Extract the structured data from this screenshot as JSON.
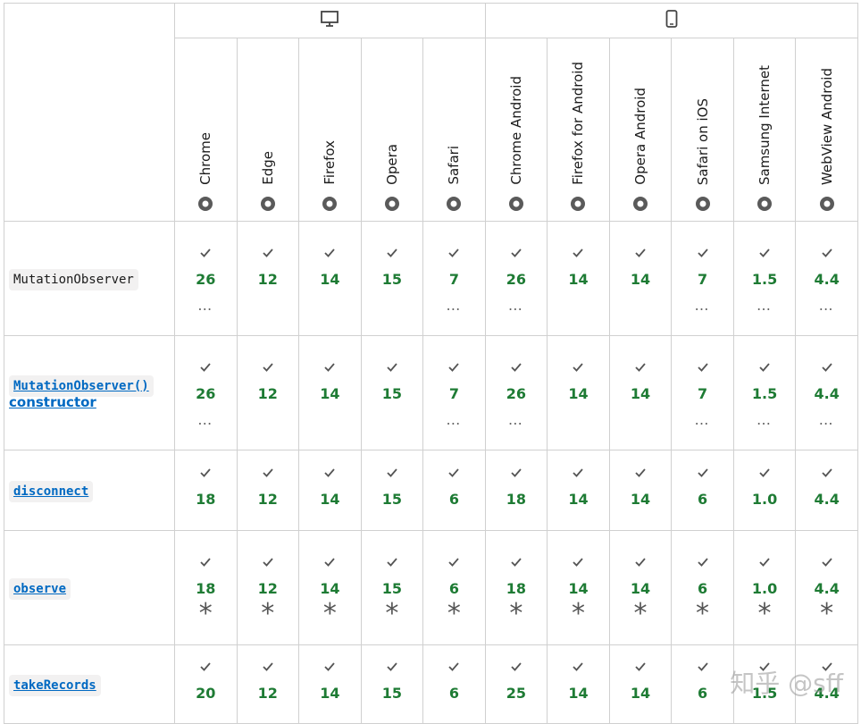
{
  "desktop_browsers": [
    "Chrome",
    "Edge",
    "Firefox",
    "Opera",
    "Safari"
  ],
  "mobile_browsers": [
    "Chrome Android",
    "Firefox for Android",
    "Opera Android",
    "Safari on iOS",
    "Samsung Internet",
    "WebView Android"
  ],
  "rows": [
    {
      "feature": {
        "code": "MutationObserver",
        "link": false
      },
      "support": [
        {
          "version": "26",
          "note": "…"
        },
        {
          "version": "12"
        },
        {
          "version": "14"
        },
        {
          "version": "15"
        },
        {
          "version": "7",
          "note": "…"
        },
        {
          "version": "26",
          "note": "…"
        },
        {
          "version": "14"
        },
        {
          "version": "14"
        },
        {
          "version": "7",
          "note": "…"
        },
        {
          "version": "1.5",
          "note": "…"
        },
        {
          "version": "4.4",
          "note": "…"
        }
      ]
    },
    {
      "feature": {
        "code": "MutationObserver()",
        "text": "constructor",
        "link": true
      },
      "support": [
        {
          "version": "26",
          "note": "…"
        },
        {
          "version": "12"
        },
        {
          "version": "14"
        },
        {
          "version": "15"
        },
        {
          "version": "7",
          "note": "…"
        },
        {
          "version": "26",
          "note": "…"
        },
        {
          "version": "14"
        },
        {
          "version": "14"
        },
        {
          "version": "7",
          "note": "…"
        },
        {
          "version": "1.5",
          "note": "…"
        },
        {
          "version": "4.4",
          "note": "…"
        }
      ]
    },
    {
      "feature": {
        "code": "disconnect",
        "link": true
      },
      "support": [
        {
          "version": "18"
        },
        {
          "version": "12"
        },
        {
          "version": "14"
        },
        {
          "version": "15"
        },
        {
          "version": "6"
        },
        {
          "version": "18"
        },
        {
          "version": "14"
        },
        {
          "version": "14"
        },
        {
          "version": "6"
        },
        {
          "version": "1.0"
        },
        {
          "version": "4.4"
        }
      ]
    },
    {
      "feature": {
        "code": "observe",
        "link": true
      },
      "support": [
        {
          "version": "18",
          "note": "*"
        },
        {
          "version": "12",
          "note": "*"
        },
        {
          "version": "14",
          "note": "*"
        },
        {
          "version": "15",
          "note": "*"
        },
        {
          "version": "6",
          "note": "*"
        },
        {
          "version": "18",
          "note": "*"
        },
        {
          "version": "14",
          "note": "*"
        },
        {
          "version": "14",
          "note": "*"
        },
        {
          "version": "6",
          "note": "*"
        },
        {
          "version": "1.0",
          "note": "*"
        },
        {
          "version": "4.4",
          "note": "*"
        }
      ]
    },
    {
      "feature": {
        "code": "takeRecords",
        "link": true
      },
      "support": [
        {
          "version": "20"
        },
        {
          "version": "12"
        },
        {
          "version": "14"
        },
        {
          "version": "15"
        },
        {
          "version": "6"
        },
        {
          "version": "25"
        },
        {
          "version": "14"
        },
        {
          "version": "14"
        },
        {
          "version": "6"
        },
        {
          "version": "1.5"
        },
        {
          "version": "4.4"
        }
      ]
    }
  ],
  "watermark": "知乎 @sff"
}
